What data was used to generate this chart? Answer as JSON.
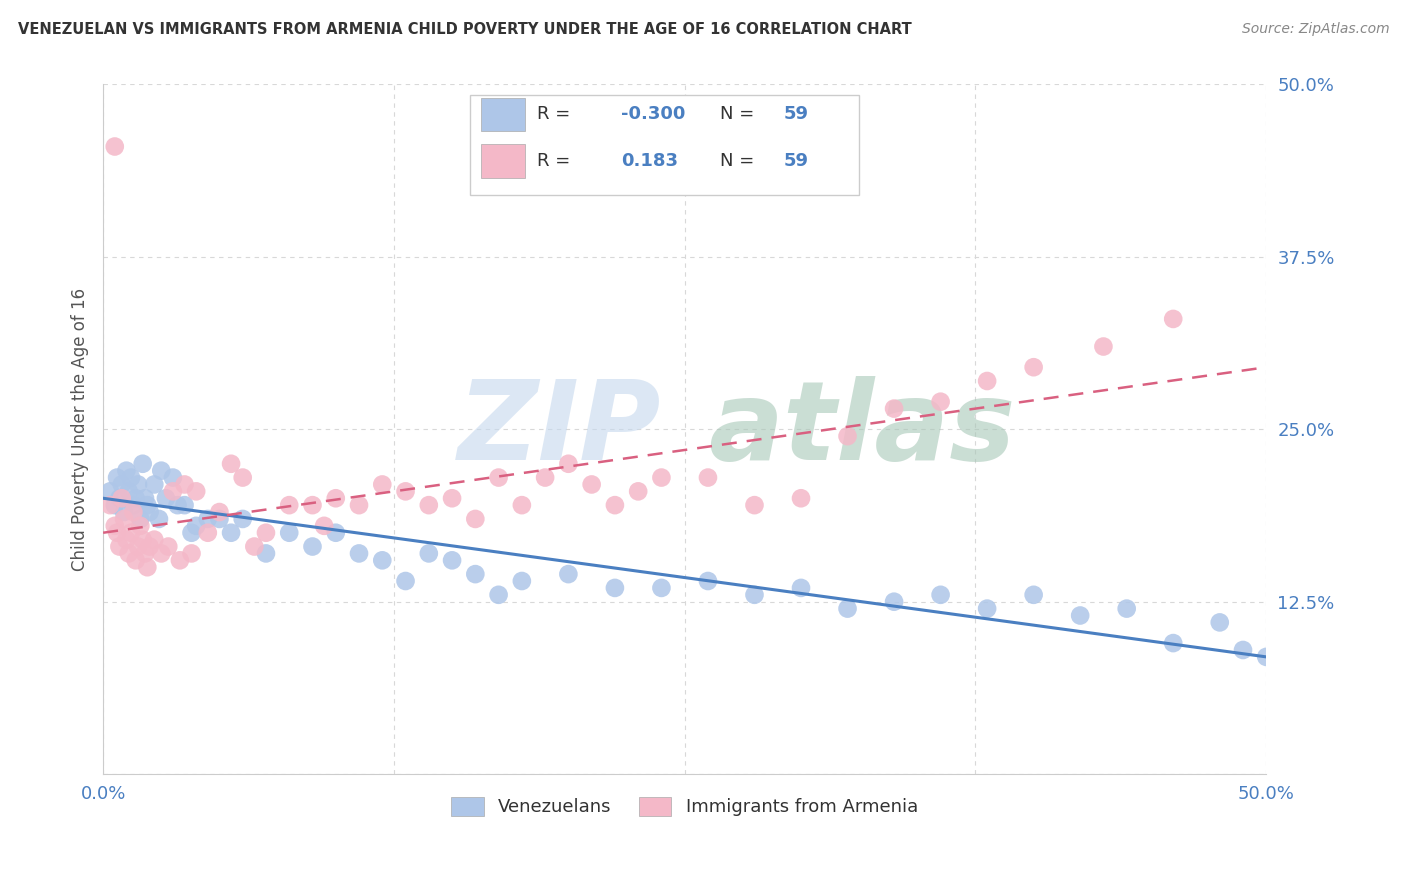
{
  "title": "VENEZUELAN VS IMMIGRANTS FROM ARMENIA CHILD POVERTY UNDER THE AGE OF 16 CORRELATION CHART",
  "source": "Source: ZipAtlas.com",
  "ylabel": "Child Poverty Under the Age of 16",
  "xlim": [
    0.0,
    0.5
  ],
  "ylim": [
    0.0,
    0.5
  ],
  "blue_color": "#aec6e8",
  "pink_color": "#f4b8c8",
  "blue_line_color": "#4a7fc1",
  "pink_line_color": "#d96080",
  "grid_color": "#d8d8d8",
  "venezuelan_x": [
    0.003,
    0.005,
    0.006,
    0.007,
    0.008,
    0.009,
    0.01,
    0.011,
    0.012,
    0.013,
    0.014,
    0.015,
    0.016,
    0.017,
    0.018,
    0.019,
    0.02,
    0.022,
    0.024,
    0.025,
    0.027,
    0.03,
    0.032,
    0.035,
    0.038,
    0.04,
    0.045,
    0.05,
    0.055,
    0.06,
    0.07,
    0.08,
    0.09,
    0.1,
    0.11,
    0.12,
    0.13,
    0.14,
    0.15,
    0.16,
    0.17,
    0.18,
    0.2,
    0.22,
    0.24,
    0.26,
    0.28,
    0.3,
    0.32,
    0.34,
    0.36,
    0.38,
    0.4,
    0.42,
    0.44,
    0.46,
    0.48,
    0.49,
    0.5
  ],
  "venezuelan_y": [
    0.205,
    0.195,
    0.215,
    0.2,
    0.21,
    0.19,
    0.22,
    0.205,
    0.215,
    0.195,
    0.2,
    0.21,
    0.185,
    0.225,
    0.2,
    0.195,
    0.19,
    0.21,
    0.185,
    0.22,
    0.2,
    0.215,
    0.195,
    0.195,
    0.175,
    0.18,
    0.185,
    0.185,
    0.175,
    0.185,
    0.16,
    0.175,
    0.165,
    0.175,
    0.16,
    0.155,
    0.14,
    0.16,
    0.155,
    0.145,
    0.13,
    0.14,
    0.145,
    0.135,
    0.135,
    0.14,
    0.13,
    0.135,
    0.12,
    0.125,
    0.13,
    0.12,
    0.13,
    0.115,
    0.12,
    0.095,
    0.11,
    0.09,
    0.085
  ],
  "armenian_x": [
    0.003,
    0.005,
    0.006,
    0.007,
    0.008,
    0.009,
    0.01,
    0.011,
    0.012,
    0.013,
    0.014,
    0.015,
    0.016,
    0.017,
    0.018,
    0.019,
    0.02,
    0.022,
    0.025,
    0.028,
    0.03,
    0.033,
    0.035,
    0.038,
    0.04,
    0.045,
    0.05,
    0.055,
    0.06,
    0.065,
    0.07,
    0.08,
    0.09,
    0.095,
    0.1,
    0.11,
    0.12,
    0.13,
    0.14,
    0.15,
    0.16,
    0.17,
    0.18,
    0.19,
    0.2,
    0.21,
    0.22,
    0.23,
    0.24,
    0.26,
    0.28,
    0.3,
    0.32,
    0.34,
    0.36,
    0.38,
    0.4,
    0.43,
    0.46
  ],
  "armenian_y": [
    0.195,
    0.18,
    0.175,
    0.165,
    0.2,
    0.185,
    0.17,
    0.16,
    0.175,
    0.19,
    0.155,
    0.165,
    0.18,
    0.17,
    0.16,
    0.15,
    0.165,
    0.17,
    0.16,
    0.165,
    0.205,
    0.155,
    0.21,
    0.16,
    0.205,
    0.175,
    0.19,
    0.225,
    0.215,
    0.165,
    0.175,
    0.195,
    0.195,
    0.18,
    0.2,
    0.195,
    0.21,
    0.205,
    0.195,
    0.2,
    0.185,
    0.215,
    0.195,
    0.215,
    0.225,
    0.21,
    0.195,
    0.205,
    0.215,
    0.215,
    0.195,
    0.2,
    0.245,
    0.265,
    0.27,
    0.285,
    0.295,
    0.31,
    0.33
  ],
  "armenian_outlier_x": [
    0.005
  ],
  "armenian_outlier_y": [
    0.455
  ]
}
